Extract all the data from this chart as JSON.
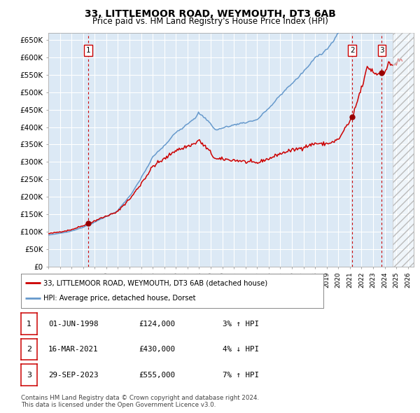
{
  "title": "33, LITTLEMOOR ROAD, WEYMOUTH, DT3 6AB",
  "subtitle": "Price paid vs. HM Land Registry's House Price Index (HPI)",
  "ylim": [
    0,
    670000
  ],
  "yticks": [
    0,
    50000,
    100000,
    150000,
    200000,
    250000,
    300000,
    350000,
    400000,
    450000,
    500000,
    550000,
    600000,
    650000
  ],
  "ytick_labels": [
    "£0",
    "£50K",
    "£100K",
    "£150K",
    "£200K",
    "£250K",
    "£300K",
    "£350K",
    "£400K",
    "£450K",
    "£500K",
    "£550K",
    "£600K",
    "£650K"
  ],
  "xlim_start": 1995.0,
  "xlim_end": 2026.5,
  "hpi_color": "#6699cc",
  "price_color": "#cc0000",
  "plot_bg": "#dce9f5",
  "grid_color": "#ffffff",
  "dashed_line_color": "#cc0000",
  "sale_points": [
    {
      "year": 1998.42,
      "price": 124000,
      "label": "1"
    },
    {
      "year": 2021.21,
      "price": 430000,
      "label": "2"
    },
    {
      "year": 2023.75,
      "price": 555000,
      "label": "3"
    }
  ],
  "legend_price_label": "33, LITTLEMOOR ROAD, WEYMOUTH, DT3 6AB (detached house)",
  "legend_hpi_label": "HPI: Average price, detached house, Dorset",
  "table_rows": [
    {
      "num": "1",
      "date": "01-JUN-1998",
      "price": "£124,000",
      "change": "3% ↑ HPI"
    },
    {
      "num": "2",
      "date": "16-MAR-2021",
      "price": "£430,000",
      "change": "4% ↓ HPI"
    },
    {
      "num": "3",
      "date": "29-SEP-2023",
      "price": "£555,000",
      "change": "7% ↑ HPI"
    }
  ],
  "footer": "Contains HM Land Registry data © Crown copyright and database right 2024.\nThis data is licensed under the Open Government Licence v3.0.",
  "hatched_region_start": 2024.67,
  "hatched_region_end": 2026.5
}
